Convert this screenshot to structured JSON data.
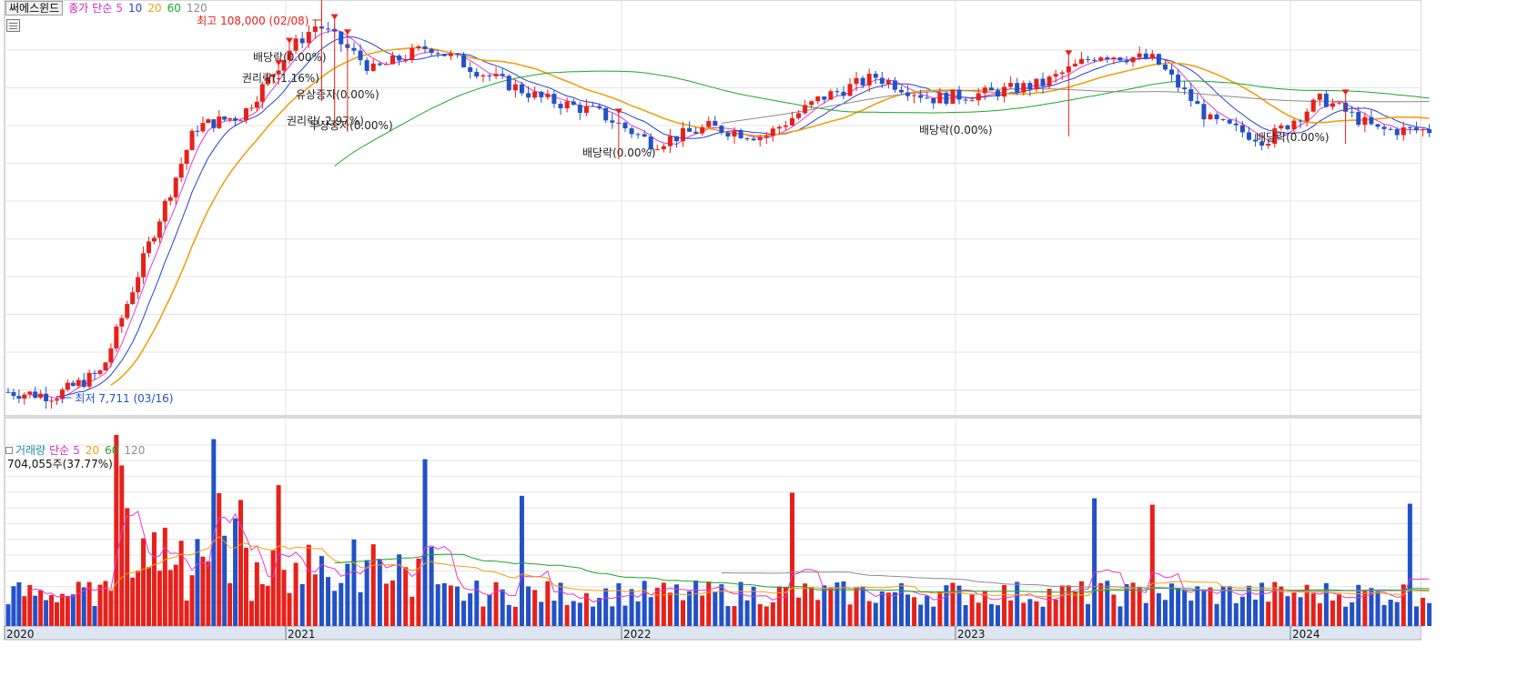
{
  "price_legend": {
    "name": "써에스윈드",
    "label": "종가",
    "method": "단순",
    "periods": [
      "5",
      "10",
      "20",
      "60",
      "120"
    ]
  },
  "volume_legend": {
    "label": "거래량",
    "method": "단순",
    "periods": [
      "5",
      "20",
      "60",
      "120"
    ],
    "current": "704,055주(37.77%)"
  },
  "colors": {
    "up": "#e8201a",
    "down": "#2251c9",
    "ma5": "#e23ad3",
    "ma10": "#2a3fd1",
    "ma20": "#f0a012",
    "ma60": "#1fa52b",
    "ma120": "#8c8c8c",
    "grid": "#e4e4e4",
    "label_up": "#e8201a",
    "label_down": "#2251c9"
  },
  "annotations": {
    "high": "최고 108,000 (02/08)",
    "low": "최저 7,711 (03/16)",
    "events": [
      "배당락(0.00%)",
      "권리락(-1.16%)",
      "유상증자(0.00%)",
      "권리락(-2.97%)",
      "무상증자(0.00%)",
      "배당락(0.00%)",
      "배당락(0.00%)",
      "배당락(0.00%)"
    ]
  },
  "x_axis": {
    "labels": [
      "2020",
      "2021",
      "2022",
      "2023",
      "2024"
    ]
  },
  "chart_data": {
    "type": "candlestick",
    "interval": "weekly",
    "x_labels": [
      "2020",
      "2021",
      "2022",
      "2023",
      "2024"
    ],
    "price_anchors": {
      "x": [
        "2020-01",
        "2020-03",
        "2020-05",
        "2020-07",
        "2020-09",
        "2020-11",
        "2021-01",
        "2021-02",
        "2021-04",
        "2021-06",
        "2021-08",
        "2021-10",
        "2021-12",
        "2022-02",
        "2022-04",
        "2022-06",
        "2022-08",
        "2022-10",
        "2022-12",
        "2023-02",
        "2023-04",
        "2023-06",
        "2023-08",
        "2023-10",
        "2023-12",
        "2024-02",
        "2024-04",
        "2024-05"
      ],
      "close": [
        8300,
        8100,
        9500,
        22000,
        48000,
        52000,
        80000,
        95000,
        70000,
        82000,
        68000,
        58000,
        53000,
        43000,
        48000,
        45000,
        58000,
        67000,
        58000,
        60000,
        64000,
        78000,
        75000,
        50000,
        44000,
        58000,
        47000,
        47000
      ]
    },
    "high": {
      "value": 108000,
      "date": "02/08"
    },
    "low": {
      "value": 7711,
      "date": "03/16"
    },
    "volume_current": {
      "shares": 704055,
      "pct_of_avg": 37.77
    },
    "moving_averages": [
      "5",
      "10",
      "20",
      "60",
      "120"
    ],
    "volume_moving_averages": [
      "5",
      "20",
      "60",
      "120"
    ]
  }
}
